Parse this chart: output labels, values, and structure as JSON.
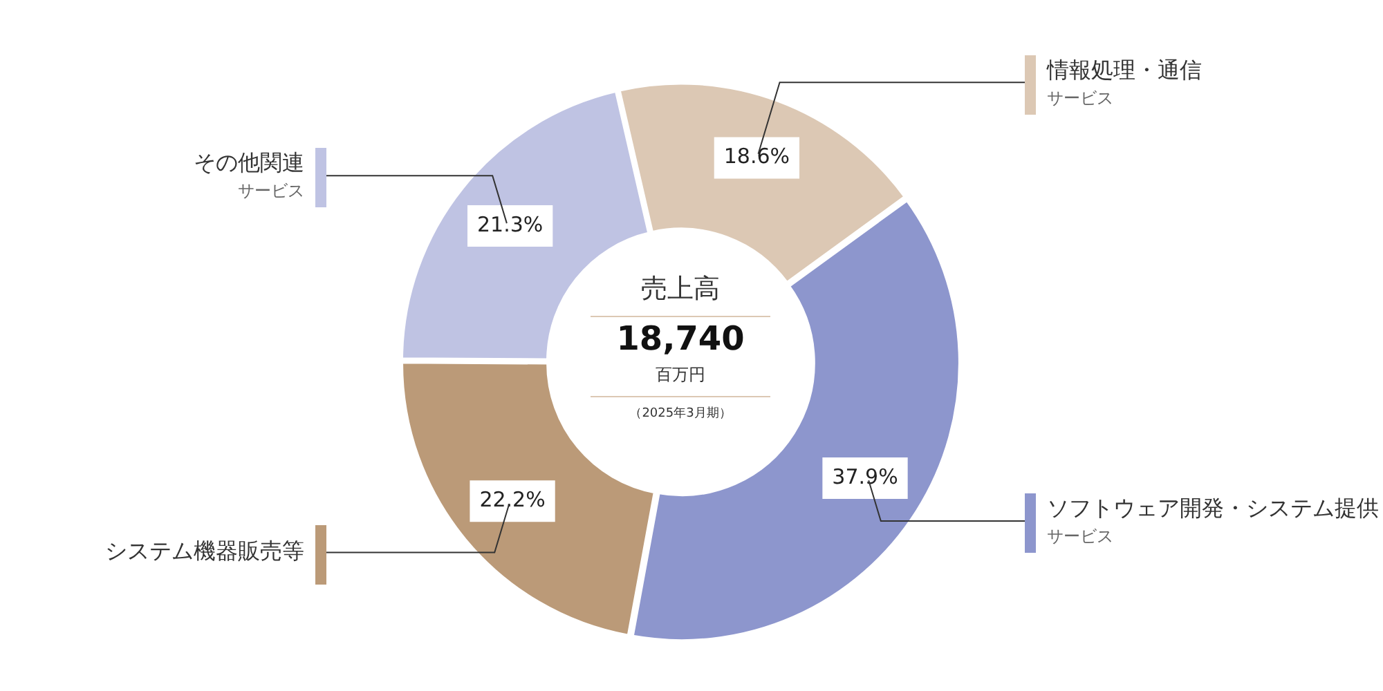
{
  "chart_data": {
    "type": "donut",
    "title": "売上高",
    "categories": [
      "情報処理・通信サービス",
      "ソフトウェア開発・システム提供サービス",
      "システム機器販売等",
      "その他関連サービス"
    ],
    "values": [
      18.6,
      37.9,
      22.2,
      21.3
    ],
    "colors": [
      "#dcc8b4",
      "#8d96cd",
      "#bb9a78",
      "#bfc3e3"
    ],
    "value_labels": [
      "18.6%",
      "37.9%",
      "22.2%",
      "21.3%"
    ],
    "annotations": [
      "18,740",
      "百万円",
      "（2025年3月期）"
    ]
  }
}
